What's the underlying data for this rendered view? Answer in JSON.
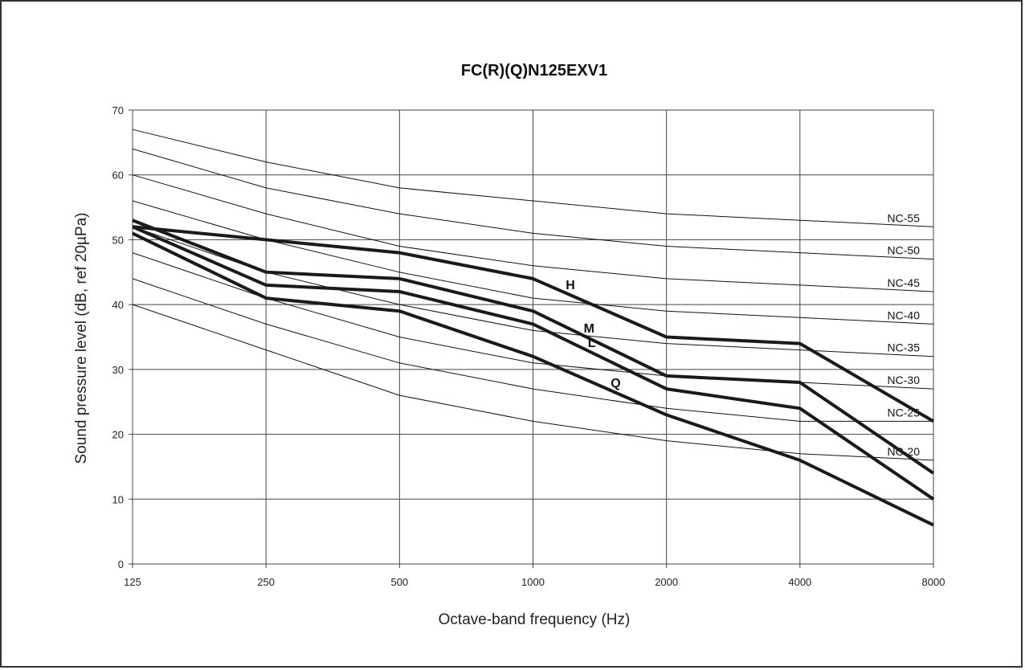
{
  "chart_data": {
    "type": "line",
    "title": "FC(R)(Q)N125EXV1",
    "xlabel": "Octave-band frequency (Hz)",
    "ylabel": "Sound pressure level (dB, ref 20µPa)",
    "x_scale": "log2",
    "categories": [
      "125",
      "250",
      "500",
      "1000",
      "2000",
      "4000",
      "8000"
    ],
    "ylim": [
      0,
      70
    ],
    "yticks": [
      "0",
      "10",
      "20",
      "30",
      "40",
      "50",
      "60",
      "70"
    ],
    "grid": true,
    "nc_curves": [
      {
        "name": "NC-55",
        "values": [
          67,
          62,
          58,
          56,
          54,
          53,
          52
        ]
      },
      {
        "name": "NC-50",
        "values": [
          64,
          58,
          54,
          51,
          49,
          48,
          47
        ]
      },
      {
        "name": "NC-45",
        "values": [
          60,
          54,
          49,
          46,
          44,
          43,
          42
        ]
      },
      {
        "name": "NC-40",
        "values": [
          56,
          50,
          45,
          41,
          39,
          38,
          37
        ]
      },
      {
        "name": "NC-35",
        "values": [
          52,
          45,
          40,
          36,
          34,
          33,
          32
        ]
      },
      {
        "name": "NC-30",
        "values": [
          48,
          41,
          35,
          31,
          29,
          28,
          27
        ]
      },
      {
        "name": "NC-25",
        "values": [
          44,
          37,
          31,
          27,
          24,
          22,
          22
        ]
      },
      {
        "name": "NC-20",
        "values": [
          40,
          33,
          26,
          22,
          19,
          17,
          16
        ]
      }
    ],
    "series": [
      {
        "name": "H",
        "values": [
          52,
          50,
          48,
          44,
          35,
          34,
          22
        ]
      },
      {
        "name": "M",
        "values": [
          53,
          45,
          44,
          39,
          29,
          28,
          14
        ]
      },
      {
        "name": "L",
        "values": [
          52,
          43,
          42,
          37,
          27,
          24,
          10
        ]
      },
      {
        "name": "Q",
        "values": [
          51,
          41,
          39,
          32,
          23,
          16,
          6
        ]
      }
    ]
  }
}
